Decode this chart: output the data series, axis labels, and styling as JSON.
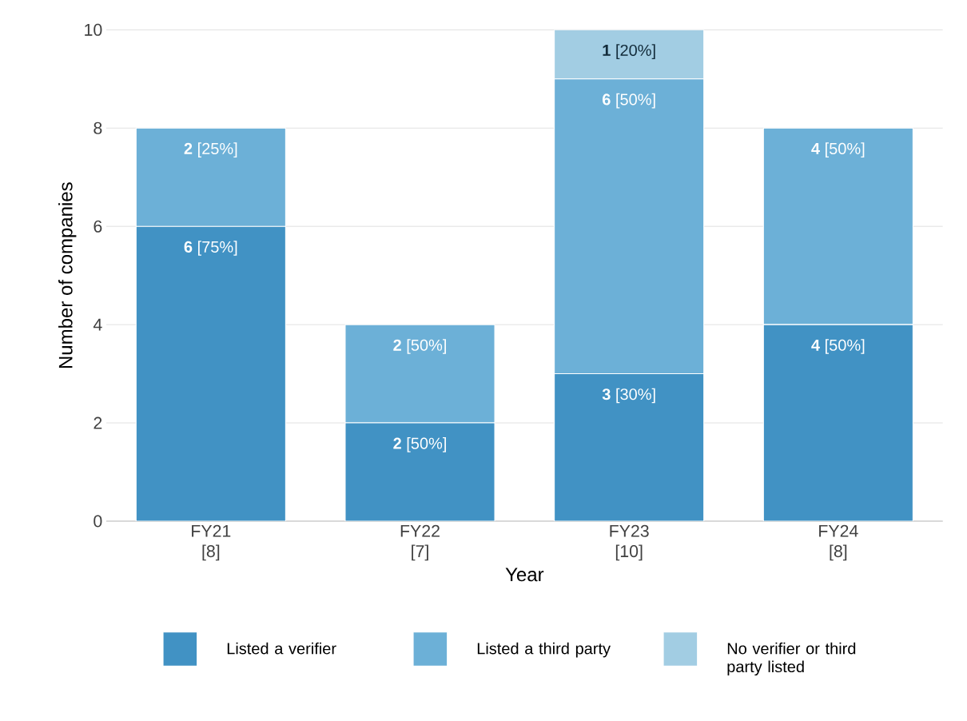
{
  "chart_data": {
    "type": "bar",
    "stacked": true,
    "xlabel": "Year",
    "ylabel": "Number of companies",
    "categories": [
      "FY21 [8]",
      "FY22 [7]",
      "FY23 [10]",
      "FY24 [8]"
    ],
    "series": [
      {
        "name": "Listed a verifier",
        "color": "#4192c4",
        "values": [
          6,
          2,
          3,
          4
        ],
        "value_labels": [
          "**6** [75%]",
          "**2** [50%]",
          "**3** [30%]",
          "**4** [50%]"
        ]
      },
      {
        "name": "Listed a third party",
        "color": "#6cb0d7",
        "values": [
          2,
          2,
          6,
          4
        ],
        "value_labels": [
          "**2** [25%]",
          "**2** [50%]",
          "**6** [50%]",
          "**4** [50%]"
        ]
      },
      {
        "name": "No verifier or third party listed",
        "color": "#a2cde3",
        "values": [
          0,
          0,
          1,
          0
        ],
        "value_labels": [
          null,
          null,
          "**1** [20%]",
          null
        ]
      }
    ],
    "ylim": [
      0,
      10
    ],
    "yticks": [
      0,
      2,
      4,
      6,
      8,
      10
    ],
    "grid": "y",
    "legend": "bottom"
  }
}
